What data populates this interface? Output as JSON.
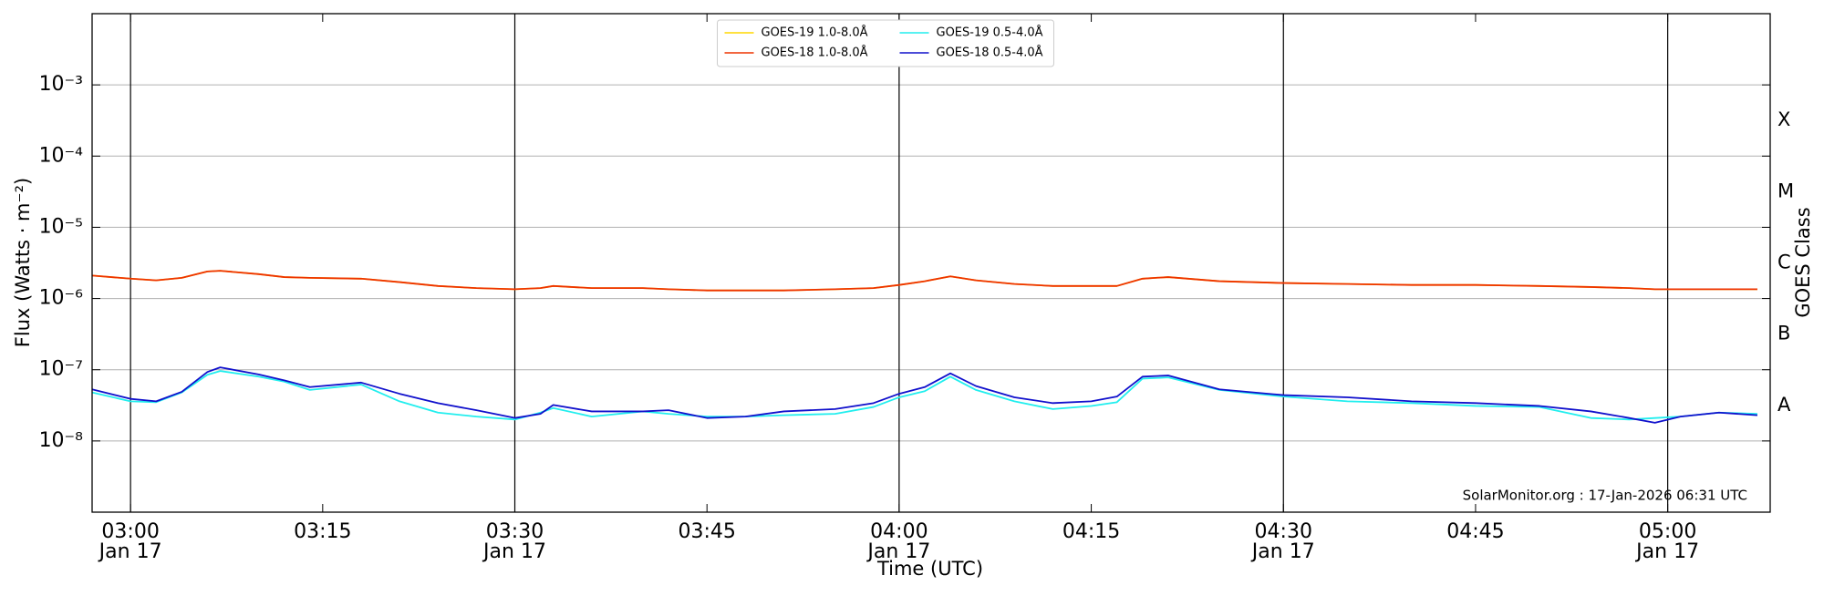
{
  "chart_data": {
    "type": "line",
    "ylabel": "Flux (Watts · m⁻²)",
    "xlabel": "Time (UTC)",
    "y2label": "GOES Class",
    "annotation": "SolarMonitor.org : 17-Jan-2026 06:31 UTC",
    "log_y": true,
    "grid": true,
    "legend": "upper center",
    "x": [
      "02:57",
      "03:00",
      "03:02",
      "03:04",
      "03:06",
      "03:07",
      "03:10",
      "03:12",
      "03:14",
      "03:18",
      "03:21",
      "03:24",
      "03:27",
      "03:30",
      "03:32",
      "03:33",
      "03:36",
      "03:40",
      "03:42",
      "03:45",
      "03:48",
      "03:51",
      "03:55",
      "03:58",
      "04:00",
      "04:02",
      "04:04",
      "04:06",
      "04:09",
      "04:12",
      "04:15",
      "04:17",
      "04:19",
      "04:21",
      "04:25",
      "04:30",
      "04:35",
      "04:40",
      "04:45",
      "04:50",
      "04:54",
      "04:57",
      "04:59",
      "05:01",
      "05:04",
      "05:07"
    ],
    "xlim": [
      "02:57",
      "05:08"
    ],
    "xticks": [
      "03:00",
      "03:15",
      "03:30",
      "03:45",
      "04:00",
      "04:15",
      "04:30",
      "04:45",
      "05:00"
    ],
    "xtick_dates": [
      "Jan 17",
      null,
      "Jan 17",
      null,
      "Jan 17",
      null,
      "Jan 17",
      null,
      "Jan 17"
    ],
    "ylim": [
      1e-09,
      0.01
    ],
    "yticks": [
      {
        "value": 1e-08,
        "label": "10⁻⁸"
      },
      {
        "value": 1e-07,
        "label": "10⁻⁷"
      },
      {
        "value": 1e-06,
        "label": "10⁻⁶"
      },
      {
        "value": 1e-05,
        "label": "10⁻⁵"
      },
      {
        "value": 0.0001,
        "label": "10⁻⁴"
      },
      {
        "value": 0.001,
        "label": "10⁻³"
      }
    ],
    "y2ticks": [
      {
        "value": 1e-08,
        "label": "A"
      },
      {
        "value": 1e-07,
        "label": "B"
      },
      {
        "value": 1e-06,
        "label": "C"
      },
      {
        "value": 1e-05,
        "label": "M"
      },
      {
        "value": 0.0001,
        "label": "X"
      }
    ],
    "series": [
      {
        "name": "GOES-19 1.0-8.0Å",
        "color": "#ffd700",
        "values": [
          2.1e-06,
          1.9e-06,
          1.8e-06,
          1.95e-06,
          2.4e-06,
          2.45e-06,
          2.2e-06,
          2e-06,
          1.95e-06,
          1.9e-06,
          1.7e-06,
          1.5e-06,
          1.4e-06,
          1.35e-06,
          1.4e-06,
          1.5e-06,
          1.4e-06,
          1.4e-06,
          1.35e-06,
          1.3e-06,
          1.3e-06,
          1.3e-06,
          1.35e-06,
          1.4e-06,
          1.55e-06,
          1.75e-06,
          2.05e-06,
          1.8e-06,
          1.6e-06,
          1.5e-06,
          1.5e-06,
          1.5e-06,
          1.9e-06,
          2e-06,
          1.75e-06,
          1.65e-06,
          1.6e-06,
          1.55e-06,
          1.55e-06,
          1.5e-06,
          1.45e-06,
          1.4e-06,
          1.35e-06,
          1.35e-06,
          1.35e-06,
          1.35e-06
        ]
      },
      {
        "name": "GOES-18 1.0-8.0Å",
        "color": "#ee3300",
        "values": [
          2.1e-06,
          1.9e-06,
          1.8e-06,
          1.95e-06,
          2.4e-06,
          2.45e-06,
          2.2e-06,
          2e-06,
          1.95e-06,
          1.9e-06,
          1.7e-06,
          1.5e-06,
          1.4e-06,
          1.35e-06,
          1.4e-06,
          1.5e-06,
          1.4e-06,
          1.4e-06,
          1.35e-06,
          1.3e-06,
          1.3e-06,
          1.3e-06,
          1.35e-06,
          1.4e-06,
          1.55e-06,
          1.75e-06,
          2.05e-06,
          1.8e-06,
          1.6e-06,
          1.5e-06,
          1.5e-06,
          1.5e-06,
          1.9e-06,
          2e-06,
          1.75e-06,
          1.65e-06,
          1.6e-06,
          1.55e-06,
          1.55e-06,
          1.5e-06,
          1.45e-06,
          1.4e-06,
          1.35e-06,
          1.35e-06,
          1.35e-06,
          1.35e-06
        ]
      },
      {
        "name": "GOES-19 0.5-4.0Å",
        "color": "#22eeee",
        "values": [
          4.8e-08,
          3.6e-08,
          3.5e-08,
          4.8e-08,
          8.5e-08,
          9.6e-08,
          8e-08,
          6.8e-08,
          5.2e-08,
          6.2e-08,
          3.6e-08,
          2.5e-08,
          2.2e-08,
          2e-08,
          2.5e-08,
          2.9e-08,
          2.2e-08,
          2.6e-08,
          2.4e-08,
          2.2e-08,
          2.2e-08,
          2.3e-08,
          2.4e-08,
          3e-08,
          4.1e-08,
          5e-08,
          8e-08,
          5.2e-08,
          3.6e-08,
          2.8e-08,
          3.1e-08,
          3.5e-08,
          7.5e-08,
          7.8e-08,
          5.2e-08,
          4.2e-08,
          3.6e-08,
          3.4e-08,
          3.1e-08,
          3e-08,
          2.1e-08,
          2e-08,
          2.1e-08,
          2.2e-08,
          2.5e-08,
          2.4e-08
        ]
      },
      {
        "name": "GOES-18 0.5-4.0Å",
        "color": "#1010cc",
        "values": [
          5.3e-08,
          3.9e-08,
          3.6e-08,
          4.9e-08,
          9.3e-08,
          1.08e-07,
          8.6e-08,
          7.1e-08,
          5.7e-08,
          6.6e-08,
          4.6e-08,
          3.4e-08,
          2.7e-08,
          2.1e-08,
          2.4e-08,
          3.2e-08,
          2.6e-08,
          2.6e-08,
          2.7e-08,
          2.1e-08,
          2.2e-08,
          2.6e-08,
          2.8e-08,
          3.4e-08,
          4.6e-08,
          5.7e-08,
          8.9e-08,
          5.9e-08,
          4.1e-08,
          3.4e-08,
          3.6e-08,
          4.2e-08,
          8e-08,
          8.3e-08,
          5.3e-08,
          4.4e-08,
          4.1e-08,
          3.6e-08,
          3.4e-08,
          3.1e-08,
          2.6e-08,
          2.1e-08,
          1.8e-08,
          2.2e-08,
          2.5e-08,
          2.3e-08
        ]
      }
    ]
  }
}
